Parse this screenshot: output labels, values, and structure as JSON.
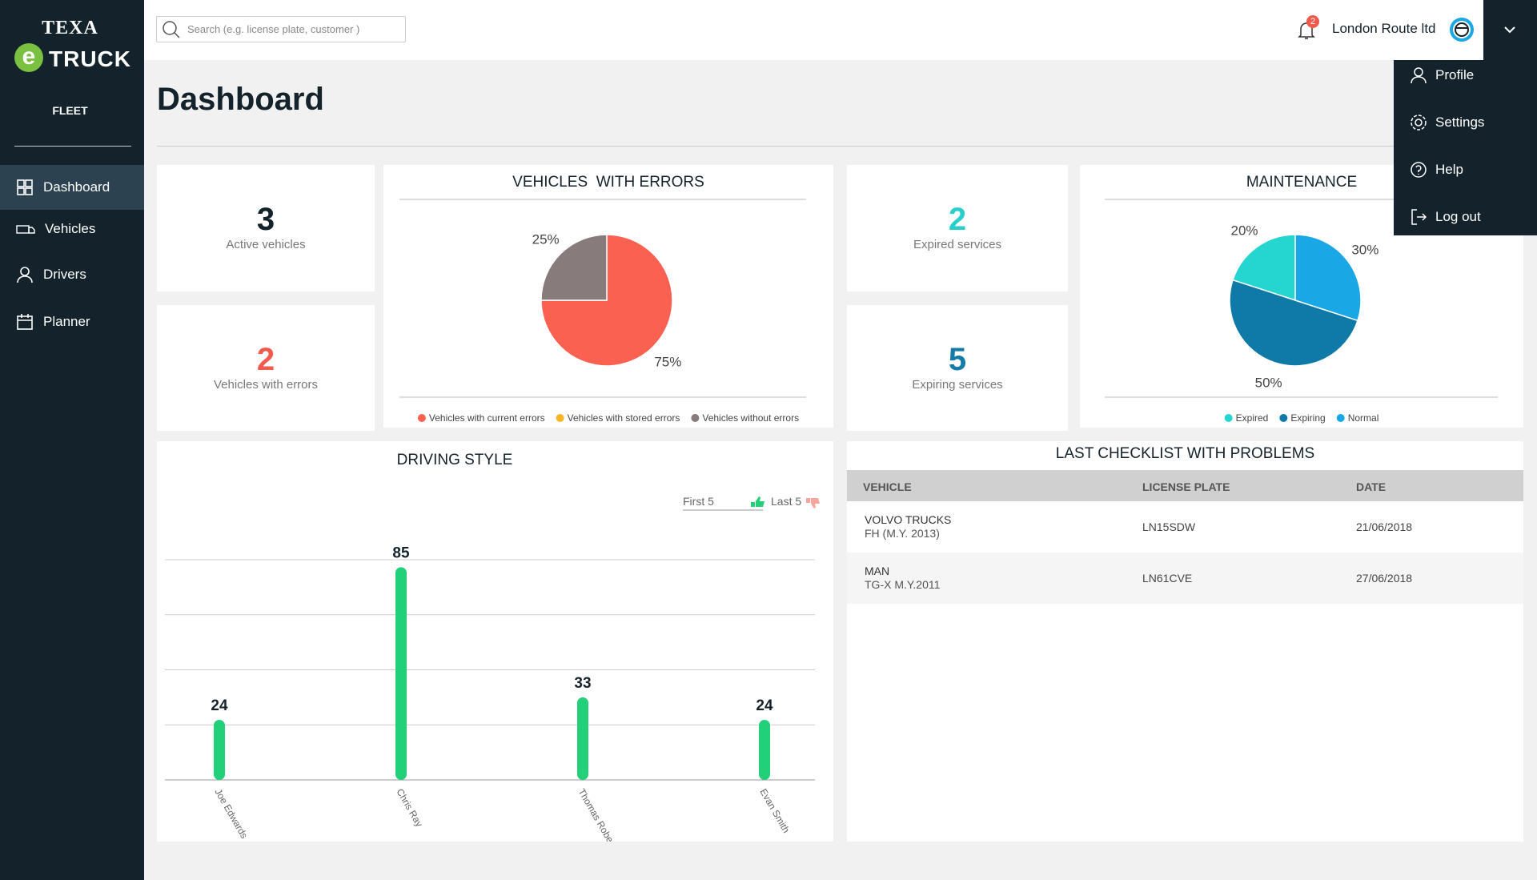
{
  "sidebar": {
    "brand_top": "TEXA",
    "brand_logo": "e",
    "brand_name": "TRUCK",
    "section": "FLEET",
    "nav": [
      "Dashboard",
      "Vehicles",
      "Drivers",
      "Planner"
    ]
  },
  "topbar": {
    "search_placeholder": "Search (e.g. license plate, customer )",
    "notifications": 2,
    "account": "London Route ltd",
    "menu": [
      "Profile",
      "Settings",
      "Help",
      "Log out"
    ]
  },
  "page_title": "Dashboard",
  "stats": [
    {
      "value": 3,
      "label": "Active vehicles",
      "color": "#14232b"
    },
    {
      "value": 2,
      "label": "Vehicles with errors",
      "color": "#f25a4b"
    },
    {
      "value": 2,
      "label": "Expired services",
      "color": "#26cfc9"
    },
    {
      "value": 5,
      "label": "Expiring services",
      "color": "#157aa5"
    }
  ],
  "errors_chart": {
    "type": "pie",
    "title": "VEHICLES  WITH ERRORS",
    "direction": "clockwise",
    "categories": [
      "Vehicles with current errors",
      "Vehicles with stored errors",
      "Vehicles without errors"
    ],
    "values": [
      75,
      0,
      25
    ],
    "value_labels": [
      "75%",
      null,
      "25%"
    ],
    "colors": [
      "#fb6150",
      "#f9b624",
      "#877b7b"
    ]
  },
  "maintenance_chart": {
    "type": "pie",
    "title": "MAINTENANCE",
    "direction": "counterclockwise",
    "categories": [
      "Expired",
      "Expiring",
      "Normal"
    ],
    "values": [
      20,
      50,
      30
    ],
    "value_labels": [
      "20%",
      "50%",
      "30%"
    ],
    "colors": [
      "#25d5d0",
      "#0f7aa8",
      "#1aa7e5"
    ]
  },
  "driving_chart": {
    "type": "bar",
    "title": "DRIVING STYLE",
    "legend": [
      "First 5",
      "Last 5"
    ],
    "categories": [
      "Joe Edwards",
      "Chris Ray",
      "Thomas Roberts",
      "Evan Smith"
    ],
    "values": [
      24,
      85,
      33,
      24
    ],
    "color": "#22d07a",
    "ylim": [
      0,
      88
    ],
    "grid_values": [
      0,
      22,
      44,
      66,
      88
    ]
  },
  "checklist": {
    "title": "LAST CHECKLIST WITH PROBLEMS",
    "columns": [
      "VEHICLE",
      "LICENSE PLATE",
      "DATE"
    ],
    "rows": [
      [
        [
          "VOLVO TRUCKS",
          "FH (M.Y. 2013)"
        ],
        "LN15SDW",
        "21/06/2018"
      ],
      [
        [
          "MAN",
          "TG-X M.Y.2011"
        ],
        "LN61CVE",
        "27/06/2018"
      ]
    ]
  }
}
